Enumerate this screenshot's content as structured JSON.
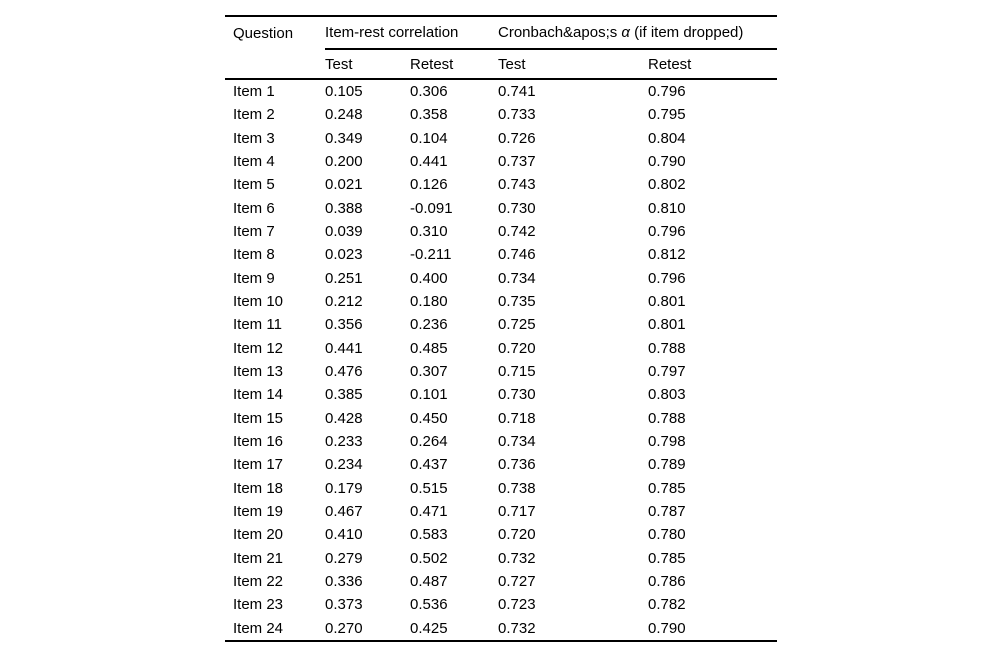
{
  "table": {
    "colors": {
      "text": "#000000",
      "rule": "#000000",
      "background": "#ffffff"
    },
    "header": {
      "question": "Question",
      "group1": "Item-rest correlation",
      "group2_prefix": "Cronbach&apos;s",
      "group2_alpha": "α",
      "group2_suffix": "(if item dropped)",
      "subheaders": [
        "Test",
        "Retest",
        "Test",
        "Retest"
      ]
    },
    "rows": [
      [
        "Item 1",
        "0.105",
        "0.306",
        "0.741",
        "0.796"
      ],
      [
        "Item 2",
        "0.248",
        "0.358",
        "0.733",
        "0.795"
      ],
      [
        "Item 3",
        "0.349",
        "0.104",
        "0.726",
        "0.804"
      ],
      [
        "Item 4",
        "0.200",
        "0.441",
        "0.737",
        "0.790"
      ],
      [
        "Item 5",
        "0.021",
        "0.126",
        "0.743",
        "0.802"
      ],
      [
        "Item 6",
        "0.388",
        "-0.091",
        "0.730",
        "0.810"
      ],
      [
        "Item 7",
        "0.039",
        "0.310",
        "0.742",
        "0.796"
      ],
      [
        "Item 8",
        "0.023",
        "-0.211",
        "0.746",
        "0.812"
      ],
      [
        "Item 9",
        "0.251",
        "0.400",
        "0.734",
        "0.796"
      ],
      [
        "Item 10",
        "0.212",
        "0.180",
        "0.735",
        "0.801"
      ],
      [
        "Item 11",
        "0.356",
        "0.236",
        "0.725",
        "0.801"
      ],
      [
        "Item 12",
        "0.441",
        "0.485",
        "0.720",
        "0.788"
      ],
      [
        "Item 13",
        "0.476",
        "0.307",
        "0.715",
        "0.797"
      ],
      [
        "Item 14",
        "0.385",
        "0.101",
        "0.730",
        "0.803"
      ],
      [
        "Item 15",
        "0.428",
        "0.450",
        "0.718",
        "0.788"
      ],
      [
        "Item 16",
        "0.233",
        "0.264",
        "0.734",
        "0.798"
      ],
      [
        "Item 17",
        "0.234",
        "0.437",
        "0.736",
        "0.789"
      ],
      [
        "Item 18",
        "0.179",
        "0.515",
        "0.738",
        "0.785"
      ],
      [
        "Item 19",
        "0.467",
        "0.471",
        "0.717",
        "0.787"
      ],
      [
        "Item 20",
        "0.410",
        "0.583",
        "0.720",
        "0.780"
      ],
      [
        "Item 21",
        "0.279",
        "0.502",
        "0.732",
        "0.785"
      ],
      [
        "Item 22",
        "0.336",
        "0.487",
        "0.727",
        "0.786"
      ],
      [
        "Item 23",
        "0.373",
        "0.536",
        "0.723",
        "0.782"
      ],
      [
        "Item 24",
        "0.270",
        "0.425",
        "0.732",
        "0.790"
      ]
    ]
  }
}
